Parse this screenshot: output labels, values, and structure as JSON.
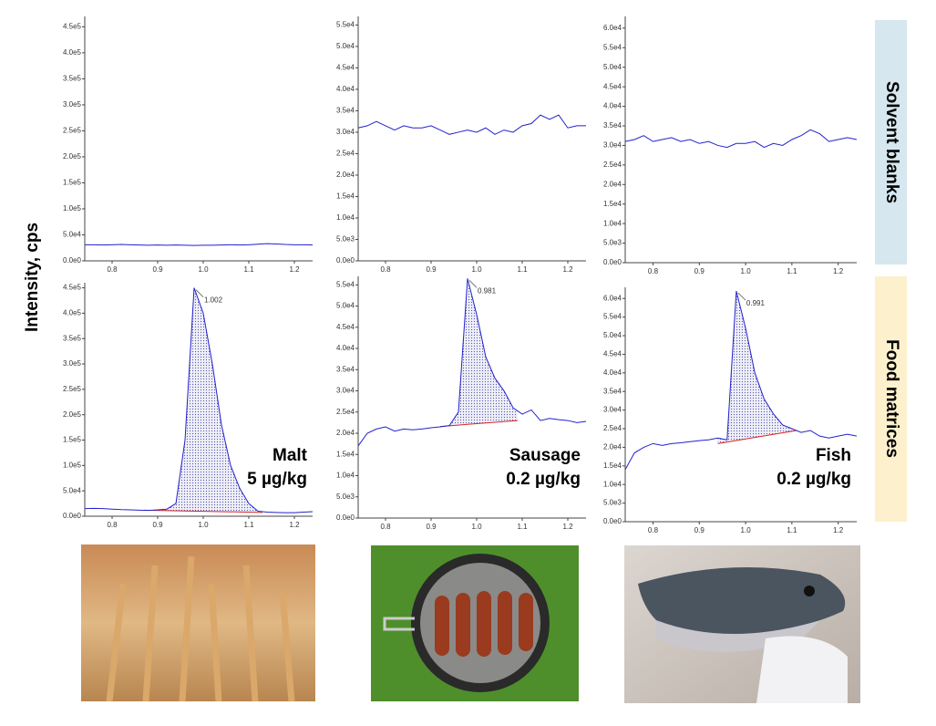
{
  "ylabel": "Intensity, cps",
  "row_labels": [
    "Solvent blanks",
    "Food matrices"
  ],
  "chart_data": [
    {
      "type": "line",
      "color": "#2222cc",
      "xlim": [
        0.74,
        1.24
      ],
      "ylim": [
        0,
        470000
      ],
      "x": [
        0.74,
        0.76,
        0.78,
        0.8,
        0.82,
        0.84,
        0.86,
        0.88,
        0.9,
        0.92,
        0.94,
        0.96,
        0.98,
        1.0,
        1.02,
        1.04,
        1.06,
        1.08,
        1.1,
        1.12,
        1.14,
        1.16,
        1.18,
        1.2,
        1.22,
        1.24
      ],
      "values": [
        31000,
        31000,
        30500,
        31000,
        31500,
        31000,
        30500,
        30000,
        30500,
        30000,
        30500,
        30000,
        29500,
        30000,
        30000,
        30500,
        31000,
        30500,
        31000,
        32000,
        33000,
        32500,
        31500,
        31000,
        31000,
        30500
      ],
      "xticks": [
        0.8,
        0.9,
        {
          "value": 1,
          "label": "1.0"
        },
        1.1,
        1.2
      ],
      "yticks": [
        {
          "value": 0,
          "label": "0.0e0"
        },
        {
          "value": 50000,
          "label": "5.0e4"
        },
        {
          "value": 100000,
          "label": "1.0e5"
        },
        {
          "value": 150000,
          "label": "1.5e5"
        },
        {
          "value": 200000,
          "label": "2.0e5"
        },
        {
          "value": 250000,
          "label": "2.5e5"
        },
        {
          "value": 300000,
          "label": "3.0e5"
        },
        {
          "value": 350000,
          "label": "3.5e5"
        },
        {
          "value": 400000,
          "label": "4.0e5"
        },
        {
          "value": 450000,
          "label": "4.5e5"
        }
      ]
    },
    {
      "type": "line",
      "color": "#2222cc",
      "xlim": [
        0.74,
        1.24
      ],
      "ylim": [
        0,
        57000
      ],
      "x": [
        0.74,
        0.76,
        0.78,
        0.8,
        0.82,
        0.84,
        0.86,
        0.88,
        0.9,
        0.92,
        0.94,
        0.96,
        0.98,
        1.0,
        1.02,
        1.04,
        1.06,
        1.08,
        1.1,
        1.12,
        1.14,
        1.16,
        1.18,
        1.2,
        1.22,
        1.24
      ],
      "values": [
        31000,
        31500,
        32500,
        31500,
        30500,
        31500,
        31000,
        31000,
        31500,
        30500,
        29500,
        30000,
        30500,
        30000,
        31000,
        29500,
        30500,
        30000,
        31500,
        32000,
        34000,
        33000,
        34000,
        31000,
        31500,
        31500
      ],
      "xticks": [
        0.8,
        0.9,
        {
          "value": 1,
          "label": "1.0"
        },
        1.1,
        1.2
      ],
      "yticks": [
        {
          "value": 0,
          "label": "0.0e0"
        },
        {
          "value": 5000,
          "label": "5.0e3"
        },
        {
          "value": 10000,
          "label": "1.0e4"
        },
        {
          "value": 15000,
          "label": "1.5e4"
        },
        {
          "value": 20000,
          "label": "2.0e4"
        },
        {
          "value": 25000,
          "label": "2.5e4"
        },
        {
          "value": 30000,
          "label": "3.0e4"
        },
        {
          "value": 35000,
          "label": "3.5e4"
        },
        {
          "value": 40000,
          "label": "4.0e4"
        },
        {
          "value": 45000,
          "label": "4.5e4"
        },
        {
          "value": 50000,
          "label": "5.0e4"
        },
        {
          "value": 55000,
          "label": "5.5e4"
        }
      ]
    },
    {
      "type": "line",
      "color": "#2222cc",
      "xlim": [
        0.74,
        1.24
      ],
      "ylim": [
        0,
        63000
      ],
      "x": [
        0.74,
        0.76,
        0.78,
        0.8,
        0.82,
        0.84,
        0.86,
        0.88,
        0.9,
        0.92,
        0.94,
        0.96,
        0.98,
        1.0,
        1.02,
        1.04,
        1.06,
        1.08,
        1.1,
        1.12,
        1.14,
        1.16,
        1.18,
        1.2,
        1.22,
        1.24
      ],
      "values": [
        31000,
        31500,
        32500,
        31000,
        31500,
        32000,
        31000,
        31500,
        30500,
        31000,
        30000,
        29500,
        30500,
        30500,
        31000,
        29500,
        30500,
        30000,
        31500,
        32500,
        34000,
        33000,
        31000,
        31500,
        32000,
        31500
      ],
      "xticks": [
        0.8,
        0.9,
        {
          "value": 1,
          "label": "1.0"
        },
        1.1,
        1.2
      ],
      "yticks": [
        {
          "value": 0,
          "label": "0.0e0"
        },
        {
          "value": 5000,
          "label": "5.0e3"
        },
        {
          "value": 10000,
          "label": "1.0e4"
        },
        {
          "value": 15000,
          "label": "1.5e4"
        },
        {
          "value": 20000,
          "label": "2.0e4"
        },
        {
          "value": 25000,
          "label": "2.5e4"
        },
        {
          "value": 30000,
          "label": "3.0e4"
        },
        {
          "value": 35000,
          "label": "3.5e4"
        },
        {
          "value": 40000,
          "label": "4.0e4"
        },
        {
          "value": 45000,
          "label": "4.5e4"
        },
        {
          "value": 50000,
          "label": "5.0e4"
        },
        {
          "value": 55000,
          "label": "5.5e4"
        },
        {
          "value": 60000,
          "label": "6.0e4"
        }
      ]
    },
    {
      "type": "line",
      "color": "#2222cc",
      "xlim": [
        0.74,
        1.24
      ],
      "ylim": [
        0,
        460000
      ],
      "x": [
        0.74,
        0.76,
        0.78,
        0.8,
        0.82,
        0.84,
        0.86,
        0.88,
        0.9,
        0.92,
        0.94,
        0.96,
        0.98,
        1.0,
        1.02,
        1.04,
        1.06,
        1.08,
        1.1,
        1.12,
        1.14,
        1.16,
        1.18,
        1.2,
        1.22,
        1.24
      ],
      "values": [
        15000,
        15500,
        15000,
        14000,
        13000,
        12500,
        12000,
        11500,
        12500,
        14000,
        25000,
        150000,
        450000,
        400000,
        300000,
        180000,
        100000,
        55000,
        25000,
        10000,
        8000,
        7500,
        7000,
        7000,
        8000,
        9000
      ],
      "integration": {
        "x": [
          0.87,
          1.13
        ],
        "values": [
          12000,
          7500
        ],
        "color": "#dd2222"
      },
      "peak_label": "1.002",
      "sample": "Malt",
      "amount": "5 µg/kg",
      "xticks": [
        0.8,
        0.9,
        {
          "value": 1,
          "label": "1.0"
        },
        1.1,
        1.2
      ],
      "yticks": [
        {
          "value": 0,
          "label": "0.0e0"
        },
        {
          "value": 50000,
          "label": "5.0e4"
        },
        {
          "value": 100000,
          "label": "1.0e5"
        },
        {
          "value": 150000,
          "label": "1.5e5"
        },
        {
          "value": 200000,
          "label": "2.0e5"
        },
        {
          "value": 250000,
          "label": "2.5e5"
        },
        {
          "value": 300000,
          "label": "3.0e5"
        },
        {
          "value": 350000,
          "label": "3.5e5"
        },
        {
          "value": 400000,
          "label": "4.0e5"
        },
        {
          "value": 450000,
          "label": "4.5e5"
        }
      ]
    },
    {
      "type": "line",
      "color": "#2222cc",
      "xlim": [
        0.74,
        1.24
      ],
      "ylim": [
        0,
        57000
      ],
      "x": [
        0.74,
        0.76,
        0.78,
        0.8,
        0.82,
        0.84,
        0.86,
        0.88,
        0.9,
        0.92,
        0.94,
        0.96,
        0.98,
        1.0,
        1.02,
        1.04,
        1.06,
        1.08,
        1.1,
        1.12,
        1.14,
        1.16,
        1.18,
        1.2,
        1.22,
        1.24
      ],
      "values": [
        17000,
        20000,
        21000,
        21500,
        20500,
        21000,
        20800,
        21000,
        21300,
        21500,
        21800,
        25000,
        56500,
        48000,
        38000,
        33000,
        30000,
        26000,
        24500,
        25500,
        23000,
        23500,
        23200,
        23000,
        22500,
        22800
      ],
      "integration": {
        "x": [
          0.92,
          1.09
        ],
        "values": [
          21600,
          23000
        ],
        "color": "#dd2222"
      },
      "peak_label": "0.981",
      "sample": "Sausage",
      "amount": "0.2 µg/kg",
      "xticks": [
        0.8,
        0.9,
        {
          "value": 1,
          "label": "1.0"
        },
        1.1,
        1.2
      ],
      "yticks": [
        {
          "value": 0,
          "label": "0.0e0"
        },
        {
          "value": 5000,
          "label": "5.0e3"
        },
        {
          "value": 10000,
          "label": "1.0e4"
        },
        {
          "value": 15000,
          "label": "1.5e4"
        },
        {
          "value": 20000,
          "label": "2.0e4"
        },
        {
          "value": 25000,
          "label": "2.5e4"
        },
        {
          "value": 30000,
          "label": "3.0e4"
        },
        {
          "value": 35000,
          "label": "3.5e4"
        },
        {
          "value": 40000,
          "label": "4.0e4"
        },
        {
          "value": 45000,
          "label": "4.5e4"
        },
        {
          "value": 50000,
          "label": "5.0e4"
        },
        {
          "value": 55000,
          "label": "5.5e4"
        }
      ]
    },
    {
      "type": "line",
      "color": "#2222cc",
      "xlim": [
        0.74,
        1.24
      ],
      "ylim": [
        0,
        63000
      ],
      "x": [
        0.74,
        0.76,
        0.78,
        0.8,
        0.82,
        0.84,
        0.86,
        0.88,
        0.9,
        0.92,
        0.94,
        0.96,
        0.98,
        1.0,
        1.02,
        1.04,
        1.06,
        1.08,
        1.1,
        1.12,
        1.14,
        1.16,
        1.18,
        1.2,
        1.22,
        1.24
      ],
      "values": [
        14000,
        18500,
        20000,
        21000,
        20500,
        21000,
        21200,
        21500,
        21800,
        22000,
        22500,
        22000,
        62000,
        52000,
        40000,
        33000,
        29000,
        26000,
        25000,
        24000,
        24500,
        23000,
        22500,
        23000,
        23500,
        23000
      ],
      "integration": {
        "x": [
          0.94,
          1.11
        ],
        "values": [
          21000,
          24500
        ],
        "color": "#dd2222"
      },
      "peak_label": "0.991",
      "sample": "Fish",
      "amount": "0.2 µg/kg",
      "xticks": [
        0.8,
        0.9,
        {
          "value": 1,
          "label": "1.0"
        },
        1.1,
        1.2
      ],
      "yticks": [
        {
          "value": 0,
          "label": "0.0e0"
        },
        {
          "value": 5000,
          "label": "5.0e3"
        },
        {
          "value": 10000,
          "label": "1.0e4"
        },
        {
          "value": 15000,
          "label": "1.5e4"
        },
        {
          "value": 20000,
          "label": "2.0e4"
        },
        {
          "value": 25000,
          "label": "2.5e4"
        },
        {
          "value": 30000,
          "label": "3.0e4"
        },
        {
          "value": 35000,
          "label": "3.5e4"
        },
        {
          "value": 40000,
          "label": "4.0e4"
        },
        {
          "value": 45000,
          "label": "4.5e4"
        },
        {
          "value": 50000,
          "label": "5.0e4"
        },
        {
          "value": 55000,
          "label": "5.5e4"
        },
        {
          "value": 60000,
          "label": "6.0e4"
        }
      ]
    }
  ]
}
